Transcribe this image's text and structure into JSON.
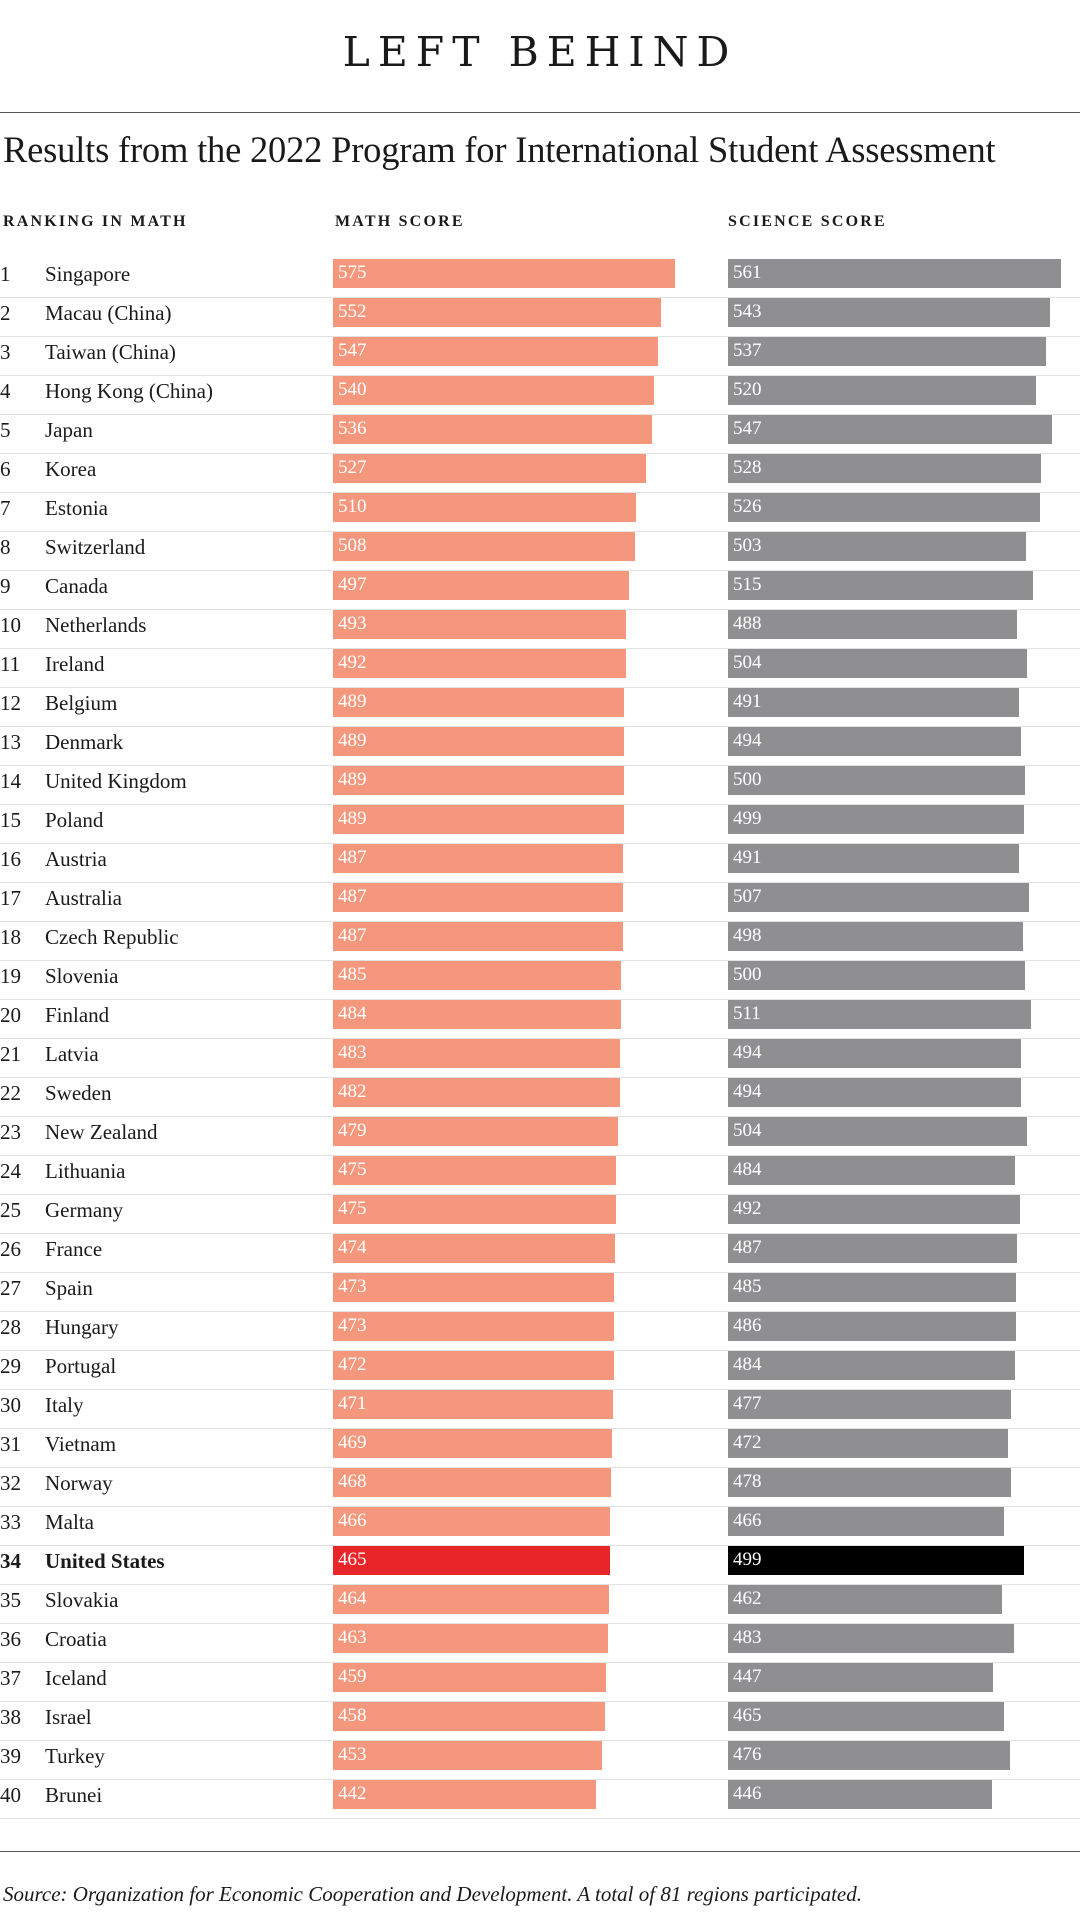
{
  "title": "LEFT BEHIND",
  "subtitle": "Results from the 2022 Program for International Student Assessment",
  "headers": {
    "ranking": "RANKING IN MATH",
    "math": "MATH SCORE",
    "science": "SCIENCE SCORE"
  },
  "source": "Source: Organization for Economic Cooperation and Development. A total of 81 regions participated.",
  "colors": {
    "math_bar": "#f4977c",
    "science_bar": "#8f8f91",
    "highlight_math": "#e8262a",
    "highlight_science": "#000000"
  },
  "chart_data": {
    "type": "bar",
    "title": "Results from the 2022 Program for International Student Assessment",
    "orientation": "horizontal",
    "highlight": "United States",
    "categories": [
      "Singapore",
      "Macau (China)",
      "Taiwan (China)",
      "Hong Kong (China)",
      "Japan",
      "Korea",
      "Estonia",
      "Switzerland",
      "Canada",
      "Netherlands",
      "Ireland",
      "Belgium",
      "Denmark",
      "United Kingdom",
      "Poland",
      "Austria",
      "Australia",
      "Czech Republic",
      "Slovenia",
      "Finland",
      "Latvia",
      "Sweden",
      "New Zealand",
      "Lithuania",
      "Germany",
      "France",
      "Spain",
      "Hungary",
      "Portugal",
      "Italy",
      "Vietnam",
      "Norway",
      "Malta",
      "United States",
      "Slovakia",
      "Croatia",
      "Iceland",
      "Israel",
      "Turkey",
      "Brunei"
    ],
    "ranks": [
      1,
      2,
      3,
      4,
      5,
      6,
      7,
      8,
      9,
      10,
      11,
      12,
      13,
      14,
      15,
      16,
      17,
      18,
      19,
      20,
      21,
      22,
      23,
      24,
      25,
      26,
      27,
      28,
      29,
      30,
      31,
      32,
      33,
      34,
      35,
      36,
      37,
      38,
      39,
      40
    ],
    "series": [
      {
        "name": "Math score",
        "values": [
          575,
          552,
          547,
          540,
          536,
          527,
          510,
          508,
          497,
          493,
          492,
          489,
          489,
          489,
          489,
          487,
          487,
          487,
          485,
          484,
          483,
          482,
          479,
          475,
          475,
          474,
          473,
          473,
          472,
          471,
          469,
          468,
          466,
          465,
          464,
          463,
          459,
          458,
          453,
          442
        ]
      },
      {
        "name": "Science score",
        "values": [
          561,
          543,
          537,
          520,
          547,
          528,
          526,
          503,
          515,
          488,
          504,
          491,
          494,
          500,
          499,
          491,
          507,
          498,
          500,
          511,
          494,
          494,
          504,
          484,
          492,
          487,
          485,
          486,
          484,
          477,
          472,
          478,
          466,
          499,
          462,
          483,
          447,
          465,
          476,
          446
        ]
      }
    ],
    "xlim": [
      0,
      575
    ]
  }
}
